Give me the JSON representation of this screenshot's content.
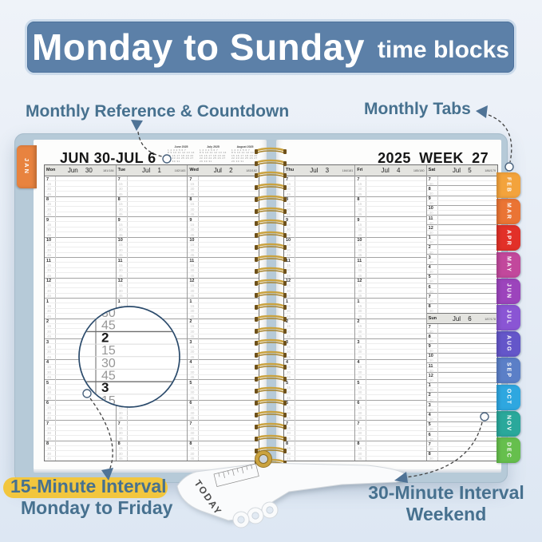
{
  "banner": {
    "title": "Monday to Sunday",
    "subtitle": "time blocks"
  },
  "callouts": {
    "monthly_reference": "Monthly Reference & Countdown",
    "monthly_tabs": "Monthly Tabs",
    "interval15_title": "15-Minute Interval",
    "interval15_sub": "Monday to Friday",
    "interval30_title": "30-Minute Interval",
    "interval30_sub": "Weekend",
    "today_marker": "TODAY"
  },
  "colors": {
    "accent_blue": "#47718f",
    "banner_bg": "#5c80a8",
    "highlight_yellow": "#f2c63e",
    "cover_blue": "#b6cad8",
    "spiral_gold": "#caa23e"
  },
  "planner": {
    "left_title": "JUN 30-JUL 6",
    "right_title": "2025 WEEK 27",
    "mini_calendars": [
      {
        "title": "June 2025"
      },
      {
        "title": "July 2025"
      },
      {
        "title": "August 2025"
      }
    ],
    "jan_tab": {
      "label": "JAN",
      "color": "#e8833f"
    },
    "month_tabs": [
      {
        "label": "FEB",
        "color": "#f3a33c"
      },
      {
        "label": "MAR",
        "color": "#ea7434"
      },
      {
        "label": "APR",
        "color": "#e23028"
      },
      {
        "label": "MAY",
        "color": "#c2489c"
      },
      {
        "label": "JUN",
        "color": "#9c44bc"
      },
      {
        "label": "JUL",
        "color": "#8a55d4"
      },
      {
        "label": "AUG",
        "color": "#6456c9"
      },
      {
        "label": "SEP",
        "color": "#5b7fc7"
      },
      {
        "label": "OCT",
        "color": "#2ea7e0"
      },
      {
        "label": "NOV",
        "color": "#2aa89b"
      },
      {
        "label": "DEC",
        "color": "#66bf4d"
      }
    ],
    "left_day_columns": [
      {
        "day": "Mon",
        "date": "Jun 30",
        "count": "181/184"
      },
      {
        "day": "Tue",
        "date": "Jul 1",
        "count": "182/183"
      },
      {
        "day": "Wed",
        "date": "Jul 2",
        "count": "183/182"
      }
    ],
    "right_day_columns": [
      {
        "day": "Thu",
        "date": "Jul 3",
        "count": "184/181"
      },
      {
        "day": "Fri",
        "date": "Jul 4",
        "count": "185/180"
      }
    ],
    "weekend_columns": [
      {
        "day": "Sat",
        "date": "Jul 5",
        "count": "186/179"
      },
      {
        "day": "Sun",
        "date": "Jul 6",
        "count": "187/178"
      }
    ],
    "hours": [
      "7",
      "8",
      "9",
      "10",
      "11",
      "12",
      "1",
      "2",
      "3",
      "4",
      "5",
      "6",
      "7",
      "8"
    ],
    "weekday_minutes": [
      "15",
      "30",
      "45"
    ],
    "weekend_minutes": [
      "30"
    ],
    "mini_calendar_weeks": [
      "1 2 3 4 5 6 7",
      "8 9 10 11 12 13 14",
      "15 16 17 18 19 20 21",
      "22 23 24 25 26 27 28",
      "29 30 31"
    ]
  },
  "magnifier": {
    "rows": [
      {
        "label": "30",
        "bold": false
      },
      {
        "label": "45",
        "bold": false
      },
      {
        "label": "2",
        "bold": true
      },
      {
        "label": "15",
        "bold": false
      },
      {
        "label": "30",
        "bold": false
      },
      {
        "label": "45",
        "bold": false
      },
      {
        "label": "3",
        "bold": true
      },
      {
        "label": "15",
        "bold": false
      }
    ]
  }
}
